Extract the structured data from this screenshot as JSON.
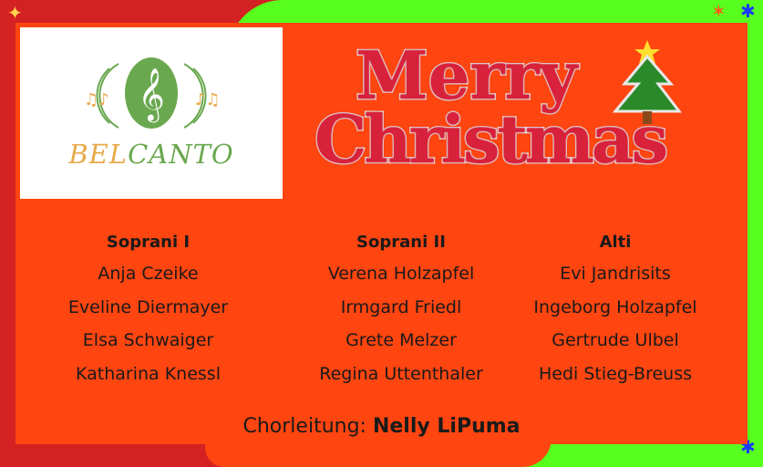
{
  "logo": {
    "text_part1": "BEL",
    "text_part2": "CANTO"
  },
  "greeting": {
    "line1": "Merry",
    "line2": "Christmas"
  },
  "columns": [
    {
      "title": "Soprani I",
      "members": [
        "Anja Czeike",
        "Eveline Diermayer",
        "Elsa Schwaiger",
        "Katharina Knessl"
      ]
    },
    {
      "title": "Soprani II",
      "members": [
        "Verena Holzapfel",
        "Irmgard Friedl",
        "Grete Melzer",
        "Regina Uttenthaler"
      ]
    },
    {
      "title": "Alti",
      "members": [
        "Evi Jandrisits",
        "Ingeborg Holzapfel",
        "Gertrude Ulbel",
        "Hedi Stieg-Breuss"
      ]
    }
  ],
  "leader": {
    "label": "Chorleitung:",
    "name": "Nelly LiPuma"
  },
  "colors": {
    "card": "#ff4510",
    "green": "#58ff1e",
    "red": "#d42222"
  }
}
